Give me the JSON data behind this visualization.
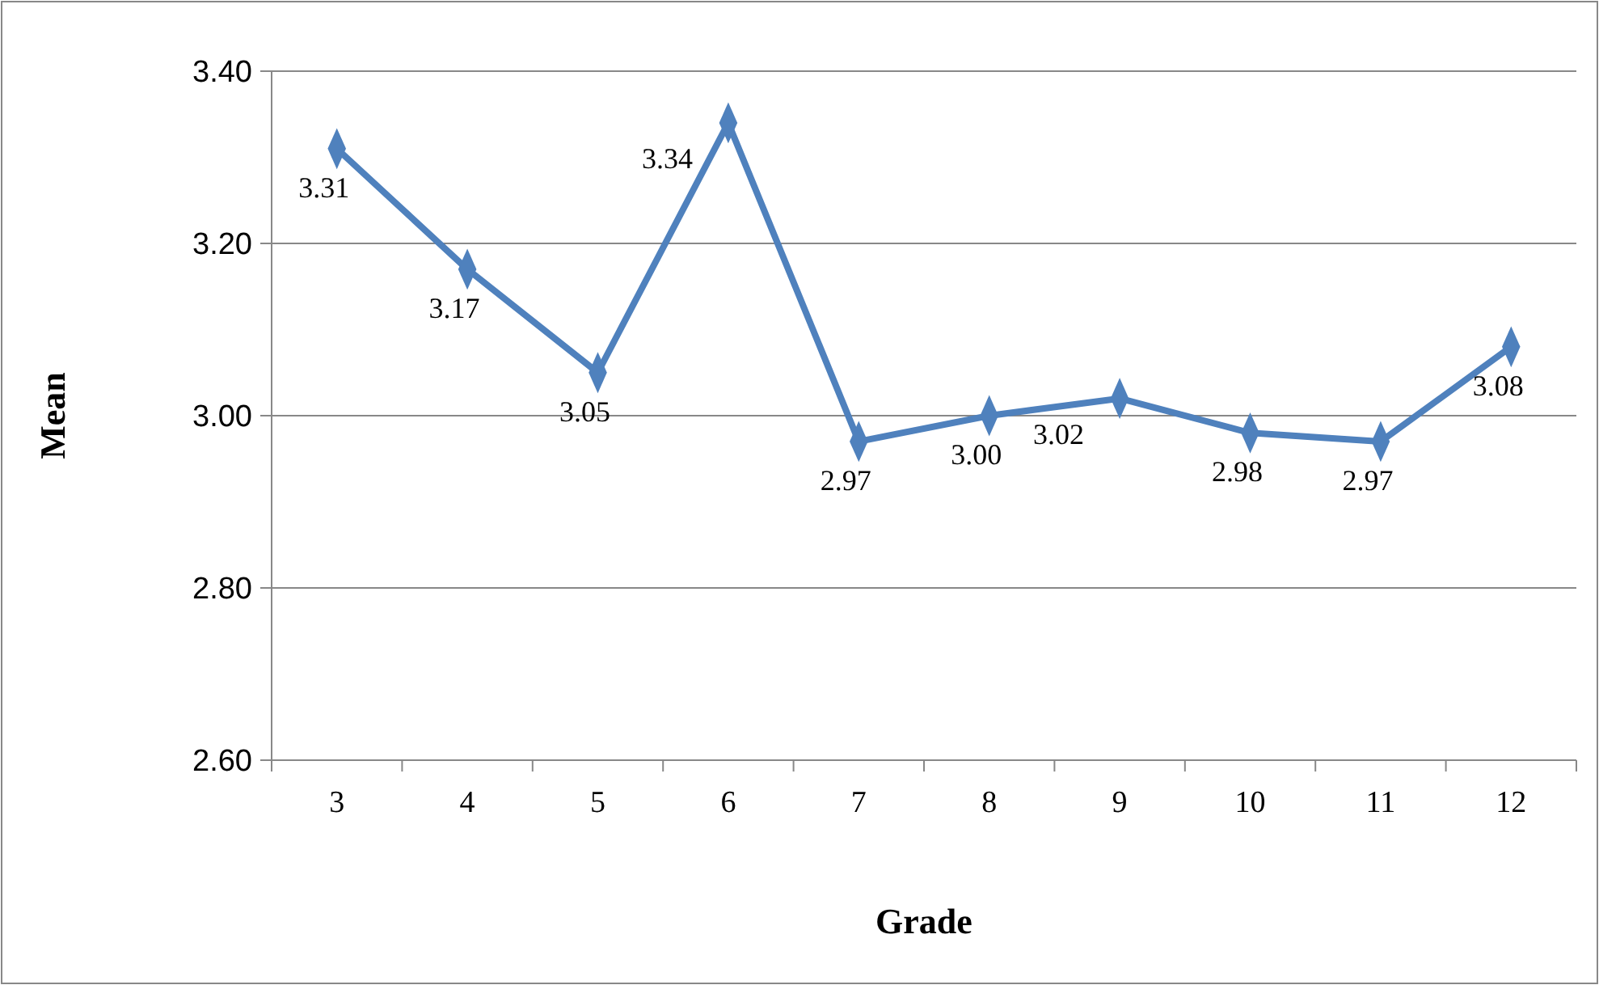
{
  "chart_data": {
    "type": "line",
    "xlabel": "Grade",
    "ylabel": "Mean",
    "categories": [
      "3",
      "4",
      "5",
      "6",
      "7",
      "8",
      "9",
      "10",
      "11",
      "12"
    ],
    "series": [
      {
        "color": "#4f81bd",
        "values": [
          3.31,
          3.17,
          3.05,
          3.34,
          2.97,
          3.0,
          3.02,
          2.98,
          2.97,
          3.08
        ]
      }
    ],
    "ylim": [
      2.6,
      3.4
    ],
    "yticks": [
      {
        "value": 2.6,
        "label": "2.60"
      },
      {
        "value": 2.8,
        "label": "2.80"
      },
      {
        "value": 3.0,
        "label": "3.00"
      },
      {
        "value": 3.2,
        "label": "3.20"
      },
      {
        "value": 3.4,
        "label": "3.40"
      }
    ],
    "value_labels": [
      "3.31",
      "3.17",
      "3.05",
      "3.34",
      "2.97",
      "3.00",
      "3.02",
      "2.98",
      "2.97",
      "3.08"
    ],
    "grid": "y",
    "marker": "diamond",
    "line_style": "solid"
  }
}
